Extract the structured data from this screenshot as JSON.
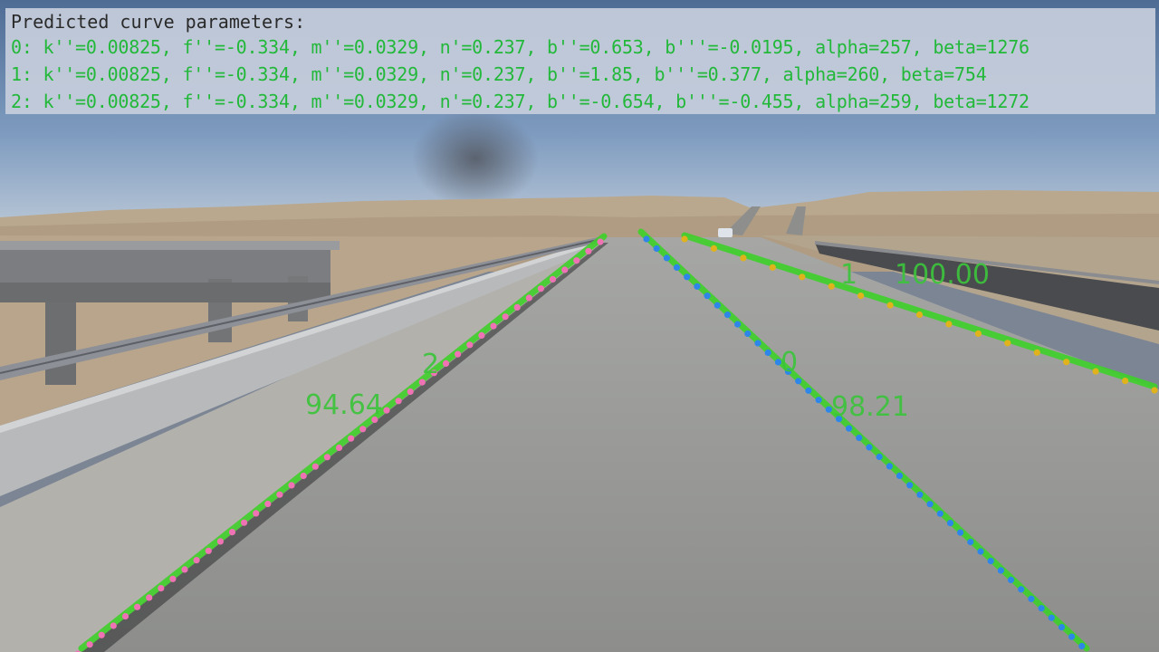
{
  "panel": {
    "title": "Predicted curve parameters:",
    "lines": [
      "0: k''=0.00825, f''=-0.334, m''=0.0329, n'=0.237, b''=0.653, b'''=-0.0195, alpha=257, beta=1276",
      "1: k''=0.00825, f''=-0.334, m''=0.0329, n'=0.237, b''=1.85, b'''=0.377, alpha=260, beta=754",
      "2: k''=0.00825, f''=-0.334, m''=0.0329, n'=0.237, b''=-0.654, b'''=-0.455, alpha=259, beta=1272"
    ]
  },
  "lanes": [
    {
      "id": "0",
      "score": "98.21"
    },
    {
      "id": "1",
      "score": "100.00"
    },
    {
      "id": "2",
      "score": "94.64"
    }
  ],
  "colors": {
    "fit_line": "#3fd12a",
    "points_lane_0": "#2e86e8",
    "points_lane_1": "#e0b21c",
    "points_lane_2": "#ef72b5",
    "label": "#3cc43c"
  }
}
